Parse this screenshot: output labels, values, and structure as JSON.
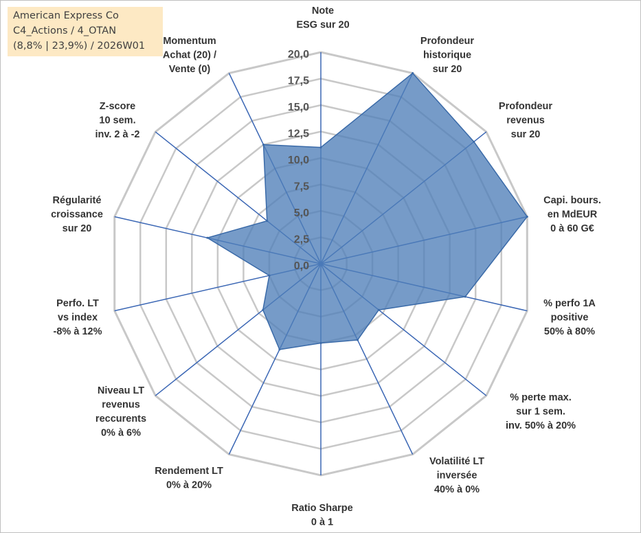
{
  "title": {
    "company": "American Express Co",
    "category": "C4_Actions / 4_OTAN",
    "stats": "(8,8% | 23,9%) / 2026W01"
  },
  "colors": {
    "fill": "#4f7fb8",
    "stroke": "#3a6aa8",
    "grid": "#c8c8c8",
    "spoke": "#3a66b4",
    "title_bg": "#fde9c4"
  },
  "chart_data": {
    "type": "radar",
    "rmin": 0,
    "rmax": 20,
    "tick_step": 2.5,
    "tick_labels": [
      "0,0",
      "2,5",
      "5,0",
      "7,5",
      "10,0",
      "12,5",
      "15,0",
      "17,5",
      "20,0"
    ],
    "axes": [
      {
        "label": [
          "Note",
          "ESG sur 20"
        ],
        "value": 11.0
      },
      {
        "label": [
          "Profondeur",
          "historique",
          "sur 20"
        ],
        "value": 20.0
      },
      {
        "label": [
          "Profondeur",
          "revenus",
          "sur 20"
        ],
        "value": 18.5
      },
      {
        "label": [
          "Capi. bours.",
          "en MdEUR",
          "0 à 60 G€"
        ],
        "value": 20.0
      },
      {
        "label": [
          "% perfo 1A",
          "positive",
          "50% à 80%"
        ],
        "value": 14.0
      },
      {
        "label": [
          "% perte max.",
          "sur 1 sem.",
          "inv. 50% à 20%"
        ],
        "value": 7.0
      },
      {
        "label": [
          "Volatilité LT",
          "inversée",
          "40% à 0%"
        ],
        "value": 8.0
      },
      {
        "label": [
          "Ratio Sharpe",
          "0 à 1"
        ],
        "value": 7.5
      },
      {
        "label": [
          "Rendement LT",
          "0% à 20%"
        ],
        "value": 9.0
      },
      {
        "label": [
          "Niveau LT",
          "revenus",
          "reccurents",
          "0% à 6%"
        ],
        "value": 7.0
      },
      {
        "label": [
          "Perfo. LT",
          "vs index",
          "-8% à 12%"
        ],
        "value": 5.0
      },
      {
        "label": [
          "Régularité",
          "croissance",
          "sur 20"
        ],
        "value": 11.0
      },
      {
        "label": [
          "Z-score",
          "10 sem.",
          "inv. 2 à -2"
        ],
        "value": 6.5
      },
      {
        "label": [
          "Momentum",
          "Achat (20) /",
          "Vente (0)"
        ],
        "value": 12.5
      }
    ]
  }
}
